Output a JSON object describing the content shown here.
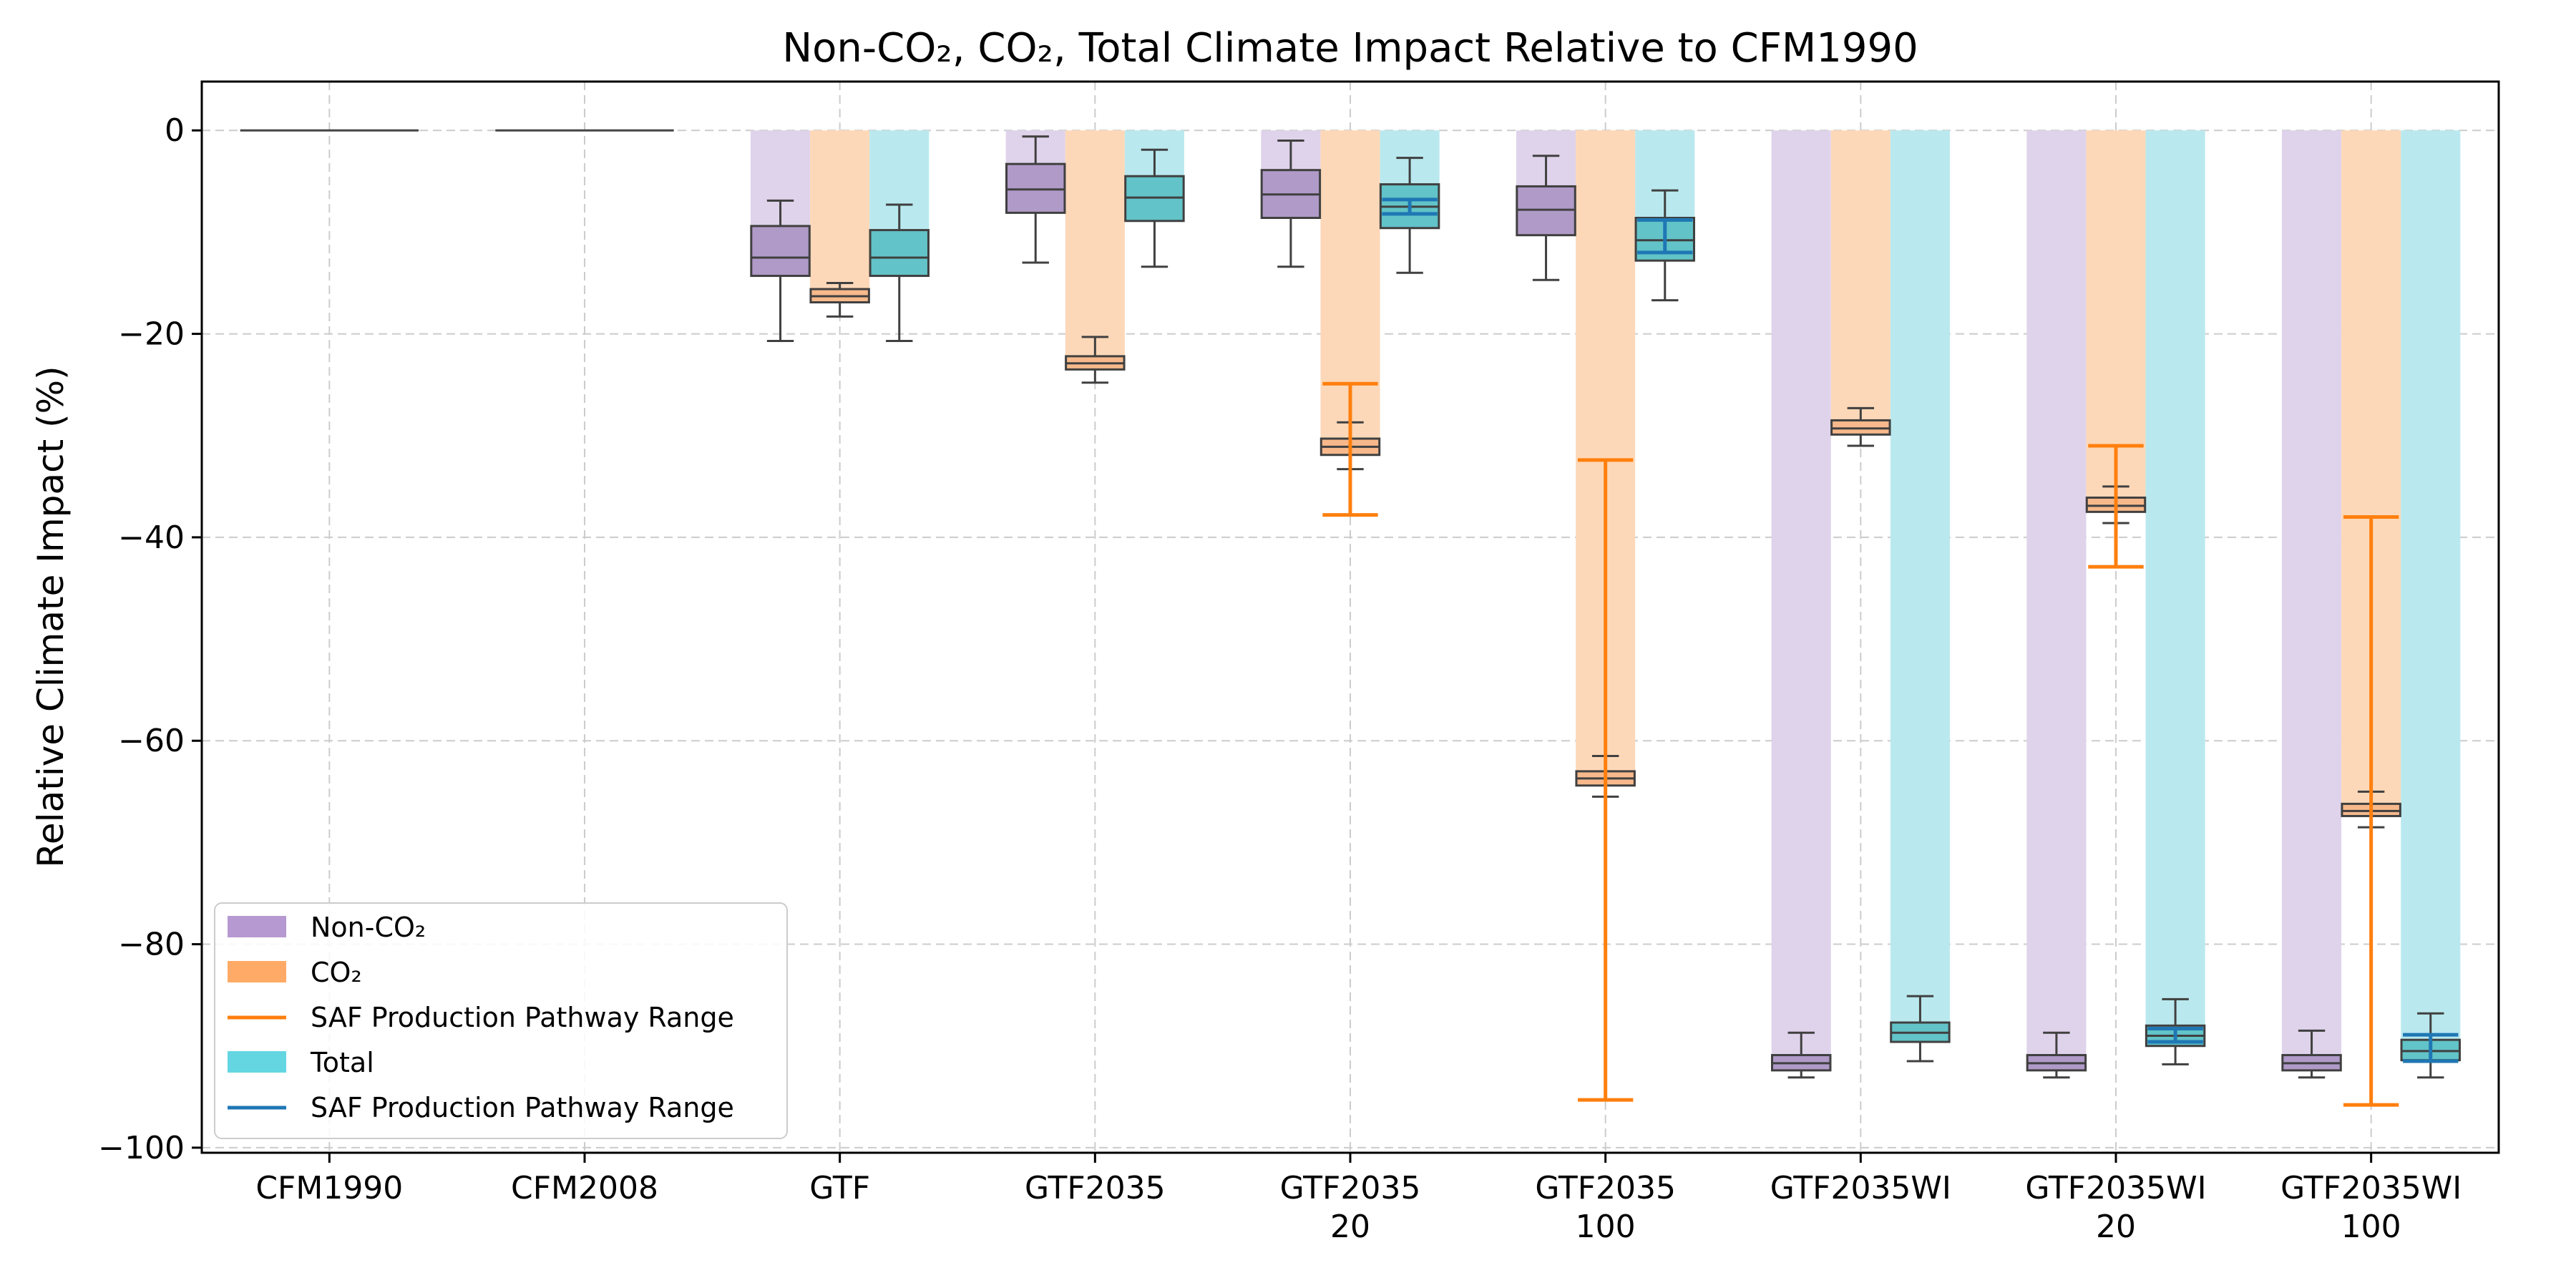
{
  "chart_data": {
    "type": "box",
    "title": "Non-CO₂, CO₂, Total Climate Impact Relative to CFM1990",
    "xlabel": "",
    "ylabel": "Relative Climate Impact (%)",
    "ylim": [
      -100.5,
      4.8
    ],
    "yticks": [
      0,
      -20,
      -40,
      -60,
      -80,
      -100
    ],
    "ytick_labels": [
      "0",
      "−20",
      "−40",
      "−60",
      "−80",
      "−100"
    ],
    "grid": true,
    "legend_position": "lower-left",
    "colors": {
      "nonco2_box": "#b09ac8",
      "nonco2_bar": "#dfd3eb",
      "co2_box": "#f7b98b",
      "co2_bar": "#fdd8b8",
      "total_box": "#62c3c8",
      "total_bar": "#b9e9ee",
      "saf_co2": "#ff7f0e",
      "saf_total": "#1f77b4",
      "legend_nonco2": "#b699d0",
      "legend_co2": "#ffaa66",
      "legend_total": "#64d6e2"
    },
    "legend": [
      {
        "label": "Non-CO₂",
        "kind": "patch",
        "color_key": "legend_nonco2"
      },
      {
        "label": "CO₂",
        "kind": "patch",
        "color_key": "legend_co2"
      },
      {
        "label": "SAF Production Pathway Range",
        "kind": "line",
        "color_key": "saf_co2"
      },
      {
        "label": "Total",
        "kind": "patch",
        "color_key": "legend_total"
      },
      {
        "label": "SAF Production Pathway Range",
        "kind": "line",
        "color_key": "saf_total"
      }
    ],
    "categories": [
      {
        "lines": [
          "CFM1990"
        ],
        "baseline": true
      },
      {
        "lines": [
          "CFM2008"
        ],
        "baseline": true
      },
      {
        "lines": [
          "GTF"
        ],
        "nonco2": {
          "bar": -12.5,
          "box": {
            "wlo": -20.7,
            "q1": -14.3,
            "med": -12.5,
            "q3": -9.4,
            "whi": -6.9
          }
        },
        "co2": {
          "bar": -16.3,
          "box": {
            "wlo": -18.3,
            "q1": -16.9,
            "med": -16.3,
            "q3": -15.6,
            "whi": -15.0
          }
        },
        "total": {
          "bar": -12.5,
          "box": {
            "wlo": -20.7,
            "q1": -14.3,
            "med": -12.5,
            "q3": -9.8,
            "whi": -7.3
          }
        }
      },
      {
        "lines": [
          "GTF2035"
        ],
        "nonco2": {
          "bar": -5.8,
          "box": {
            "wlo": -13.0,
            "q1": -8.1,
            "med": -5.8,
            "q3": -3.3,
            "whi": -0.6
          }
        },
        "co2": {
          "bar": -22.9,
          "box": {
            "wlo": -24.8,
            "q1": -23.5,
            "med": -22.9,
            "q3": -22.2,
            "whi": -20.3
          }
        },
        "total": {
          "bar": -6.6,
          "box": {
            "wlo": -13.4,
            "q1": -8.9,
            "med": -6.6,
            "q3": -4.5,
            "whi": -1.9
          }
        }
      },
      {
        "lines": [
          "GTF2035",
          "20"
        ],
        "nonco2": {
          "bar": -6.3,
          "box": {
            "wlo": -13.4,
            "q1": -8.6,
            "med": -6.3,
            "q3": -3.9,
            "whi": -1.0
          }
        },
        "co2": {
          "bar": -31.1,
          "box": {
            "wlo": -33.3,
            "q1": -31.9,
            "med": -31.1,
            "q3": -30.3,
            "whi": -28.7
          },
          "saf": [
            -37.8,
            -24.9
          ]
        },
        "total": {
          "bar": -7.5,
          "box": {
            "wlo": -14.0,
            "q1": -9.6,
            "med": -7.5,
            "q3": -5.3,
            "whi": -2.7
          },
          "saf": [
            -8.2,
            -6.8
          ]
        }
      },
      {
        "lines": [
          "GTF2035",
          "100"
        ],
        "nonco2": {
          "bar": -7.8,
          "box": {
            "wlo": -14.7,
            "q1": -10.3,
            "med": -7.8,
            "q3": -5.5,
            "whi": -2.5
          }
        },
        "co2": {
          "bar": -63.7,
          "box": {
            "wlo": -65.5,
            "q1": -64.4,
            "med": -63.7,
            "q3": -63.0,
            "whi": -61.5
          },
          "saf": [
            -95.3,
            -32.4
          ]
        },
        "total": {
          "bar": -10.8,
          "box": {
            "wlo": -16.7,
            "q1": -12.8,
            "med": -10.8,
            "q3": -8.6,
            "whi": -5.9
          },
          "saf": [
            -12.0,
            -8.8
          ]
        }
      },
      {
        "lines": [
          "GTF2035WI"
        ],
        "nonco2": {
          "bar": -91.7,
          "box": {
            "wlo": -93.1,
            "q1": -92.4,
            "med": -91.7,
            "q3": -90.9,
            "whi": -88.7
          }
        },
        "co2": {
          "bar": -29.3,
          "box": {
            "wlo": -31.0,
            "q1": -29.9,
            "med": -29.3,
            "q3": -28.5,
            "whi": -27.3
          }
        },
        "total": {
          "bar": -88.7,
          "box": {
            "wlo": -91.5,
            "q1": -89.6,
            "med": -88.7,
            "q3": -87.7,
            "whi": -85.1
          }
        }
      },
      {
        "lines": [
          "GTF2035WI",
          "20"
        ],
        "nonco2": {
          "bar": -91.7,
          "box": {
            "wlo": -93.1,
            "q1": -92.4,
            "med": -91.7,
            "q3": -90.9,
            "whi": -88.7
          }
        },
        "co2": {
          "bar": -36.9,
          "box": {
            "wlo": -38.6,
            "q1": -37.5,
            "med": -36.9,
            "q3": -36.1,
            "whi": -35.0
          },
          "saf": [
            -42.9,
            -31.0
          ]
        },
        "total": {
          "bar": -89.0,
          "box": {
            "wlo": -91.8,
            "q1": -90.0,
            "med": -89.0,
            "q3": -88.0,
            "whi": -85.4
          },
          "saf": [
            -89.6,
            -88.3
          ]
        }
      },
      {
        "lines": [
          "GTF2035WI",
          "100"
        ],
        "nonco2": {
          "bar": -91.7,
          "box": {
            "wlo": -93.1,
            "q1": -92.4,
            "med": -91.7,
            "q3": -90.9,
            "whi": -88.5
          }
        },
        "co2": {
          "bar": -66.9,
          "box": {
            "wlo": -68.5,
            "q1": -67.4,
            "med": -66.9,
            "q3": -66.2,
            "whi": -65.0
          },
          "saf": [
            -95.8,
            -38.0
          ]
        },
        "total": {
          "bar": -90.5,
          "box": {
            "wlo": -93.1,
            "q1": -91.4,
            "med": -90.5,
            "q3": -89.4,
            "whi": -86.8
          },
          "saf": [
            -91.5,
            -88.9
          ]
        }
      }
    ]
  }
}
